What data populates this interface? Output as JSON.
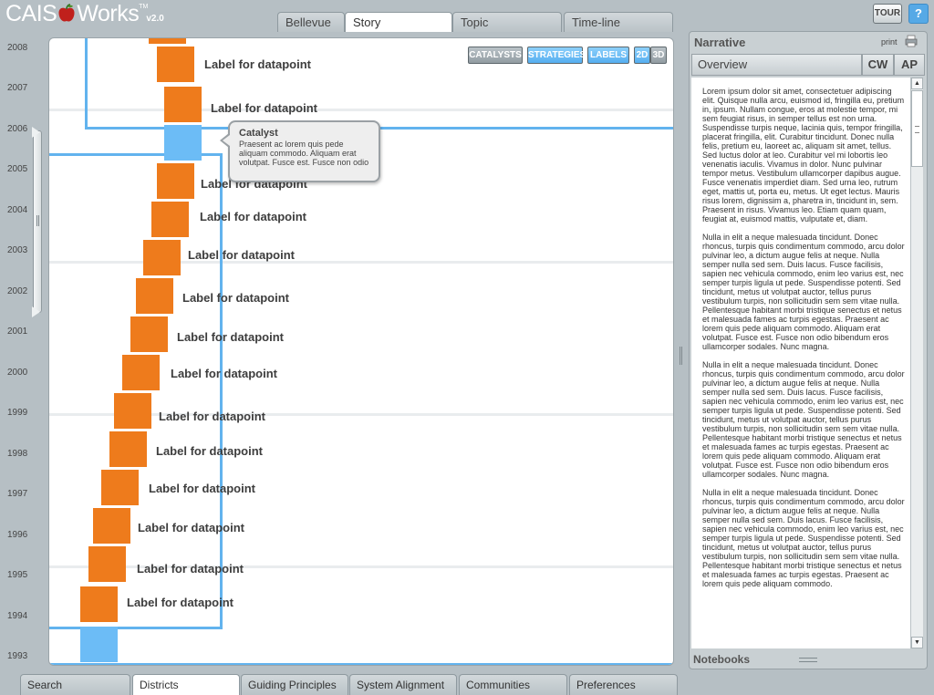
{
  "app": {
    "brand_left": "CAIS",
    "brand_right": "Works",
    "trademark": "TM",
    "version": "v2.0"
  },
  "top_tabs": [
    {
      "label": "Bellevue"
    },
    {
      "label": "Story",
      "active": true
    },
    {
      "label": "Topic"
    },
    {
      "label": "Time-line"
    }
  ],
  "header_buttons": {
    "tour": "TOUR",
    "help_icon": "help-speech-bubble-icon"
  },
  "years": [
    "2008",
    "2007",
    "2006",
    "2005",
    "2004",
    "2003",
    "2002",
    "2001",
    "2000",
    "1999",
    "1998",
    "1997",
    "1996",
    "1995",
    "1994",
    "1993"
  ],
  "view_controls": {
    "catalysts": "CATALYSTS",
    "strategies": "STRATEGIES",
    "labels": "LABELS",
    "mode_2d": "2D",
    "mode_3d": "3D"
  },
  "datapoints": [
    {
      "label": "Label for datapoint",
      "color": "#ee7b1c"
    },
    {
      "label": "Label for datapoint",
      "color": "#ee7b1c"
    },
    {
      "label": "",
      "color": "#6cbcf6"
    },
    {
      "label": "Label for datapoint",
      "color": "#ee7b1c"
    },
    {
      "label": "Label for datapoint",
      "color": "#ee7b1c"
    },
    {
      "label": "Label for datapoint",
      "color": "#ee7b1c"
    },
    {
      "label": "Label for datapoint",
      "color": "#ee7b1c"
    },
    {
      "label": "Label for datapoint",
      "color": "#ee7b1c"
    },
    {
      "label": "Label for datapoint",
      "color": "#ee7b1c"
    },
    {
      "label": "Label for datapoint",
      "color": "#ee7b1c"
    },
    {
      "label": "Label for datapoint",
      "color": "#ee7b1c"
    },
    {
      "label": "Label for datapoint",
      "color": "#ee7b1c"
    },
    {
      "label": "Label for datapoint",
      "color": "#ee7b1c"
    },
    {
      "label": "Label for datapoint",
      "color": "#ee7b1c"
    },
    {
      "label": "Label for datapoint",
      "color": "#ee7b1c"
    },
    {
      "label": "",
      "color": "#6cbcf6"
    }
  ],
  "catalyst_tooltip": {
    "title": "Catalyst",
    "body": "Praesent ac lorem quis pede aliquam commodo. Aliquam erat volutpat. Fusce est. Fusce non odio"
  },
  "narrative": {
    "title": "Narrative",
    "print_label": "print",
    "tabs": {
      "overview": "Overview",
      "cw": "CW",
      "ap": "AP"
    },
    "paragraphs": [
      "Lorem ipsum dolor sit amet, consectetuer adipiscing elit. Quisque nulla arcu, euismod id, fringilla eu, pretium in, ipsum. Nullam congue, eros at molestie tempor, mi sem feugiat risus, in semper tellus est non urna. Suspendisse turpis neque, lacinia quis, tempor fringilla, placerat fringilla, elit. Curabitur tincidunt. Donec nulla felis, pretium eu, laoreet ac, aliquam sit amet, tellus. Sed luctus dolor at leo. Curabitur vel mi lobortis leo venenatis iaculis. Vivamus in dolor. Nunc pulvinar tempor metus. Vestibulum ullamcorper dapibus augue. Fusce venenatis imperdiet diam. Sed urna leo, rutrum eget, mattis ut, porta eu, metus. Ut eget lectus. Mauris risus lorem, dignissim a, pharetra in, tincidunt in, sem. Praesent in risus. Vivamus leo. Etiam quam quam, feugiat at, euismod mattis, vulputate et, diam.",
      "Nulla in elit a neque malesuada tincidunt. Donec rhoncus, turpis quis condimentum commodo, arcu dolor pulvinar leo, a dictum augue felis at neque. Nulla semper nulla sed sem. Duis lacus. Fusce facilisis, sapien nec vehicula commodo, enim leo varius est, nec semper turpis ligula ut pede. Suspendisse potenti. Sed tincidunt, metus ut volutpat auctor, tellus purus vestibulum turpis, non sollicitudin sem sem vitae nulla. Pellentesque habitant morbi tristique senectus et netus et malesuada fames ac turpis egestas. Praesent ac lorem quis pede aliquam commodo. Aliquam erat volutpat. Fusce est. Fusce non odio bibendum eros ullamcorper sodales. Nunc magna.",
      "Nulla in elit a neque malesuada tincidunt. Donec rhoncus, turpis quis condimentum commodo, arcu dolor pulvinar leo, a dictum augue felis at neque. Nulla semper nulla sed sem. Duis lacus. Fusce facilisis, sapien nec vehicula commodo, enim leo varius est, nec semper turpis ligula ut pede. Suspendisse potenti. Sed tincidunt, metus ut volutpat auctor, tellus purus vestibulum turpis, non sollicitudin sem sem vitae nulla. Pellentesque habitant morbi tristique senectus et netus et malesuada fames ac turpis egestas. Praesent ac lorem quis pede aliquam commodo. Aliquam erat volutpat. Fusce est. Fusce non odio bibendum eros ullamcorper sodales. Nunc magna.",
      "Nulla in elit a neque malesuada tincidunt. Donec rhoncus, turpis quis condimentum commodo, arcu dolor pulvinar leo, a dictum augue felis at neque. Nulla semper nulla sed sem. Duis lacus. Fusce facilisis, sapien nec vehicula commodo, enim leo varius est, nec semper turpis ligula ut pede. Suspendisse potenti. Sed tincidunt, metus ut volutpat auctor, tellus purus vestibulum turpis, non sollicitudin sem sem vitae nulla. Pellentesque habitant morbi tristique senectus et netus et malesuada fames ac turpis egestas. Praesent ac lorem quis pede aliquam commodo."
    ],
    "notebooks_label": "Notebooks"
  },
  "bottom_tabs": [
    {
      "label": "Search"
    },
    {
      "label": "Districts",
      "active": true
    },
    {
      "label": "Guiding Principles"
    },
    {
      "label": "System Alignment"
    },
    {
      "label": "Communities"
    },
    {
      "label": "Preferences"
    }
  ],
  "colors": {
    "orange_bar": "#ee7b1c",
    "blue_catalyst": "#6cbcf6",
    "frame_blue": "#62b3ee",
    "chrome": "#b6bfc4"
  }
}
